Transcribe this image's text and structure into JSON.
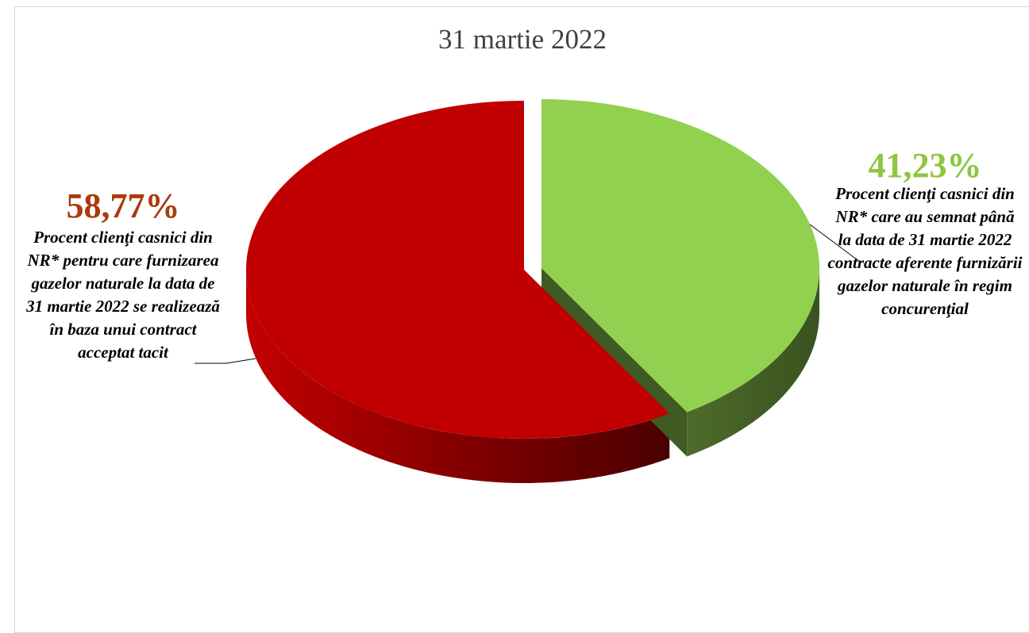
{
  "title": "31 martie 2022",
  "colors": {
    "slice_red": "#c00000",
    "slice_green": "#92d050",
    "pct_red": "#a93b0d",
    "pct_green": "#8dc63f"
  },
  "labels": {
    "left_pct": "58,77%",
    "left_desc": "Procent clienţi casnici din NR* pentru care furnizarea gazelor naturale la data de 31 martie 2022 se realizează în baza unui contract acceptat tacit",
    "right_pct": "41,23%",
    "right_desc": "Procent clienţi casnici din NR* care au semnat până la data de 31 martie 2022 contracte aferente furnizării gazelor naturale în regim concurenţial"
  },
  "chart_data": {
    "type": "pie",
    "title": "31 martie 2022",
    "style": "3d-exploded",
    "categories": [
      "Procent clienţi casnici din NR* pentru care furnizarea gazelor naturale la data de 31 martie 2022 se realizează în baza unui contract acceptat tacit",
      "Procent clienţi casnici din NR* care au semnat până la data de 31 martie 2022 contracte aferente furnizării gazelor naturale în regim concurenţial"
    ],
    "values": [
      58.77,
      41.23
    ],
    "colors": [
      "#c00000",
      "#92d050"
    ]
  }
}
